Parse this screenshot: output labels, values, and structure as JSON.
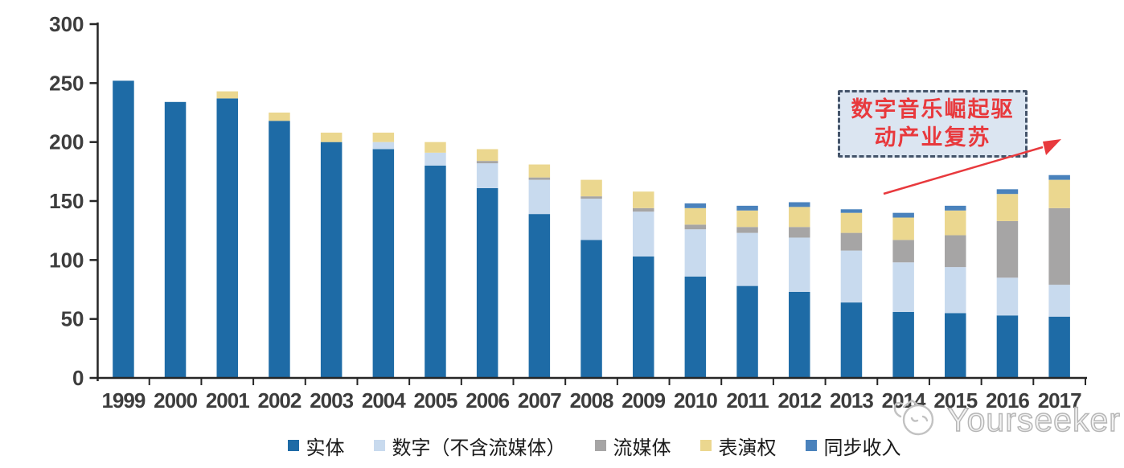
{
  "chart_data": {
    "type": "bar",
    "stacked": true,
    "title": "",
    "categories": [
      "1999",
      "2000",
      "2001",
      "2002",
      "2003",
      "2004",
      "2005",
      "2006",
      "2007",
      "2008",
      "2009",
      "2010",
      "2011",
      "2012",
      "2013",
      "2014",
      "2015",
      "2016",
      "2017"
    ],
    "series": [
      {
        "name": "实体",
        "color": "#1e6ba6",
        "values": [
          252,
          234,
          237,
          218,
          200,
          194,
          180,
          161,
          139,
          117,
          103,
          86,
          78,
          73,
          64,
          56,
          55,
          53,
          52
        ]
      },
      {
        "name": "数字（不含流媒体）",
        "color": "#c8daee",
        "values": [
          0,
          0,
          0,
          0,
          0,
          6,
          11,
          21,
          29,
          35,
          38,
          40,
          45,
          46,
          44,
          42,
          39,
          32,
          27
        ]
      },
      {
        "name": "流媒体",
        "color": "#a6a5a5",
        "values": [
          0,
          0,
          0,
          0,
          0,
          0,
          0,
          2,
          2,
          2,
          3,
          4,
          5,
          9,
          15,
          19,
          27,
          48,
          65
        ]
      },
      {
        "name": "表演权",
        "color": "#ebd78f",
        "values": [
          0,
          0,
          6,
          7,
          8,
          8,
          9,
          10,
          11,
          14,
          14,
          14,
          14,
          17,
          17,
          19,
          21,
          23,
          24
        ]
      },
      {
        "name": "同步收入",
        "color": "#4a82bc",
        "values": [
          0,
          0,
          0,
          0,
          0,
          0,
          0,
          0,
          0,
          0,
          0,
          4,
          4,
          4,
          3,
          4,
          4,
          4,
          4
        ]
      }
    ],
    "ylim": [
      0,
      300
    ],
    "y_ticks": [
      0,
      50,
      100,
      150,
      200,
      250,
      300
    ],
    "grid": false,
    "legend_position": "bottom",
    "axis_color": "#262626",
    "tick_label_color": "#3d3d3d"
  },
  "annotation": {
    "line1": "数字音乐崛起驱",
    "line2": "动产业复苏",
    "box_fill": "#dbe5f1",
    "border_color": "#44546a",
    "text_color": "#e8393d",
    "arrow_color": "#e8393d"
  },
  "watermark": {
    "text": "Yourseeker"
  }
}
